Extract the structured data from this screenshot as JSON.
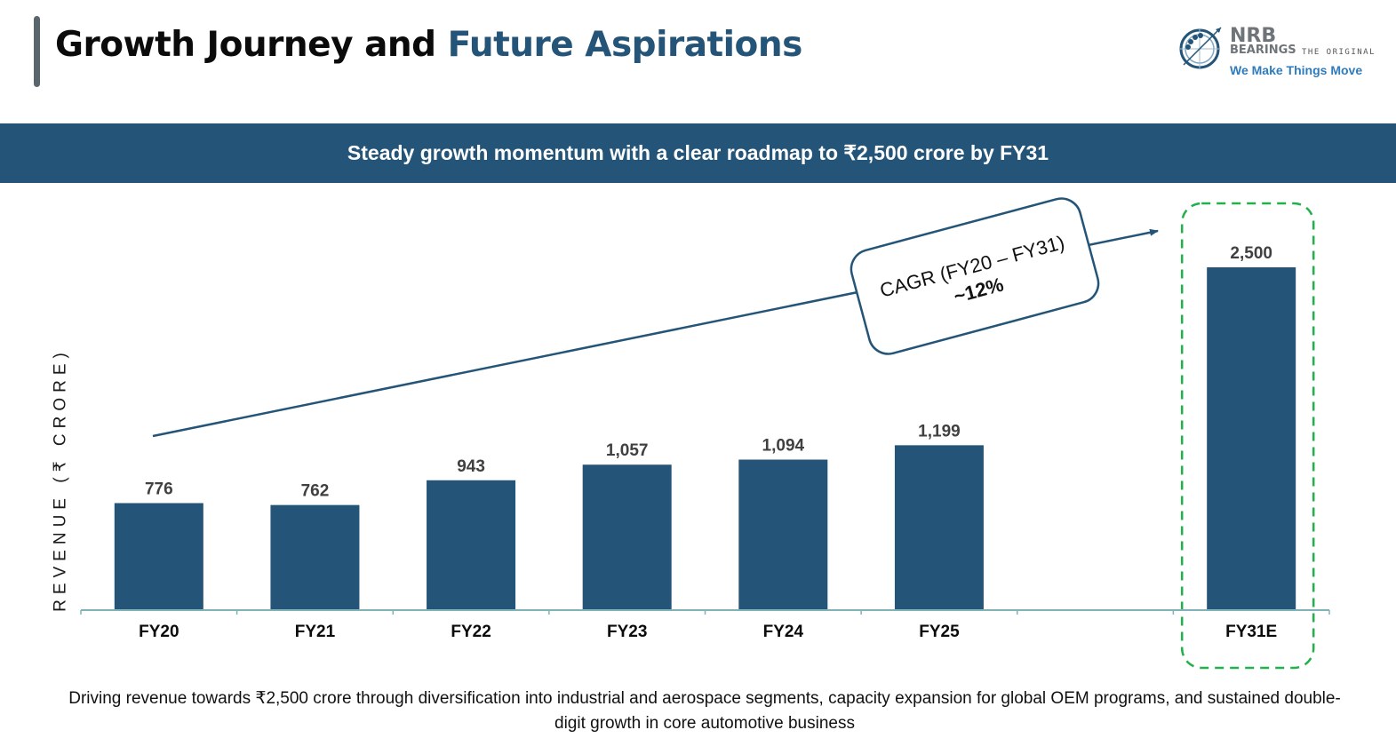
{
  "header": {
    "title_main": "Growth Journey and ",
    "title_accent": "Future Aspirations",
    "logo": {
      "brand": "NRB",
      "subbrand": "BEARINGS",
      "tagline_small": "THE ORIGINAL",
      "tagline": "We Make Things Move"
    }
  },
  "banner": {
    "text": "Steady growth momentum with a clear roadmap to ₹2,500 crore by FY31"
  },
  "colors": {
    "accent": "#245578",
    "bar": "#245578",
    "axis": "#7fb3b8",
    "highlight_box": "#22b04b",
    "value_label": "#404040"
  },
  "chart_data": {
    "type": "bar",
    "title": "Steady growth momentum with a clear roadmap to ₹2,500 crore by FY31",
    "xlabel": "",
    "ylabel": "REVENUE (₹ CRORE)",
    "categories": [
      "FY20",
      "FY21",
      "FY22",
      "FY23",
      "FY24",
      "FY25",
      "",
      "FY31E"
    ],
    "values": [
      776,
      762,
      943,
      1057,
      1094,
      1199,
      null,
      2500
    ],
    "value_labels": [
      "776",
      "762",
      "943",
      "1,057",
      "1,094",
      "1,199",
      "",
      "2,500"
    ],
    "ylim": [
      0,
      2500
    ],
    "grid": false,
    "highlighted_category": "FY31E",
    "annotation": {
      "line1": "CAGR (FY20 – FY31)",
      "line2": "~12%",
      "type": "arrow",
      "from": "FY20",
      "to": "FY31E"
    }
  },
  "footer": {
    "text": "Driving revenue towards ₹2,500 crore through diversification into industrial and aerospace segments, capacity expansion for global OEM programs, and sustained double-digit growth in core automotive business"
  }
}
